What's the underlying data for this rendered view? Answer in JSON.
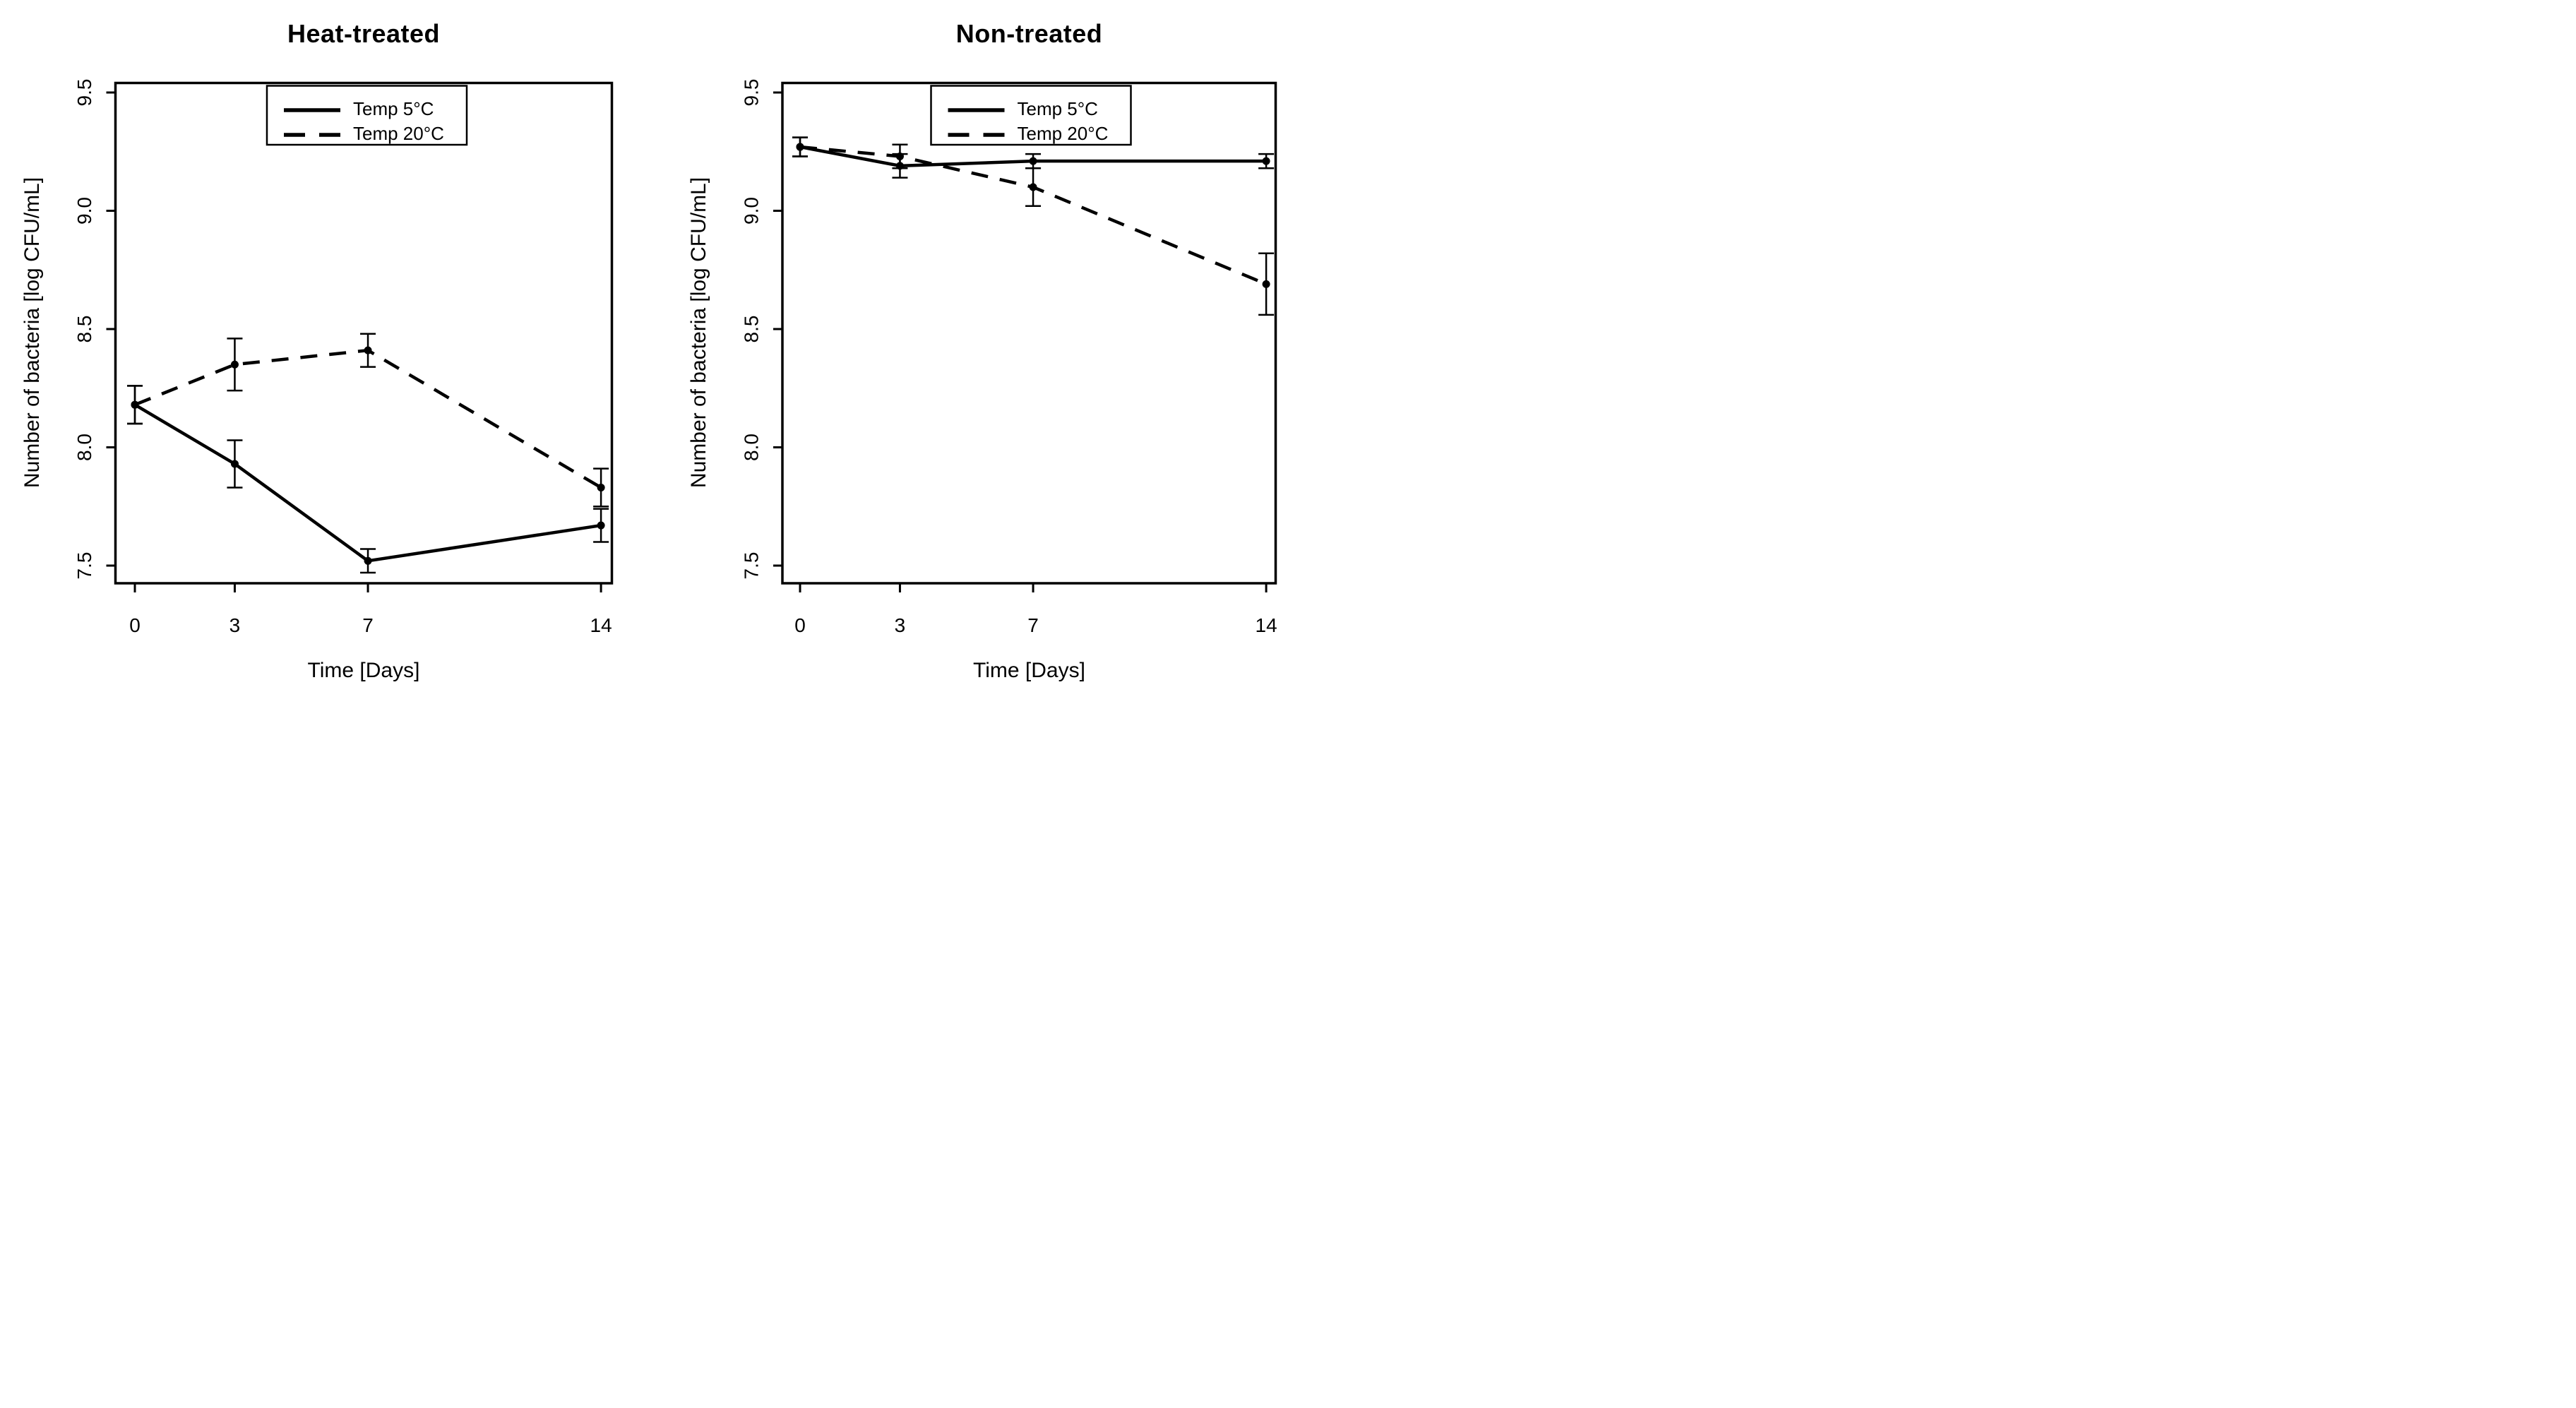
{
  "figure": {
    "background": "#ffffff",
    "foreground": "#000000",
    "panel_count": 2
  },
  "chart_data": [
    {
      "type": "line",
      "title": "Heat-treated",
      "xlabel": "Time [Days]",
      "ylabel": "Number of bacteria [log CFU/mL]",
      "x": [
        0,
        3,
        7,
        14
      ],
      "xtick_labels": [
        "0",
        "3",
        "7",
        "14"
      ],
      "yticks": [
        7.5,
        8.0,
        8.5,
        9.0,
        9.5
      ],
      "ytick_labels": [
        "7.5",
        "8.0",
        "8.5",
        "9.0",
        "9.5"
      ],
      "ylim": [
        7.42,
        9.58
      ],
      "grid": false,
      "legend_position": "top-inside",
      "ytick_label_rotation": -90,
      "series": [
        {
          "name": "Temp 5°C",
          "style": "solid",
          "marker": "filled-circle",
          "values": [
            8.18,
            7.93,
            7.52,
            7.67
          ],
          "errors": [
            0.08,
            0.1,
            0.05,
            0.07
          ]
        },
        {
          "name": "Temp 20°C",
          "style": "dashed",
          "marker": "filled-circle",
          "values": [
            8.18,
            8.35,
            8.41,
            7.83
          ],
          "errors": [
            0.08,
            0.11,
            0.07,
            0.08
          ]
        }
      ]
    },
    {
      "type": "line",
      "title": "Non-treated",
      "xlabel": "Time [Days]",
      "ylabel": "Number of bacteria [log CFU/mL]",
      "x": [
        0,
        3,
        7,
        14
      ],
      "xtick_labels": [
        "0",
        "3",
        "7",
        "14"
      ],
      "yticks": [
        7.5,
        8.0,
        8.5,
        9.0,
        9.5
      ],
      "ytick_labels": [
        "7.5",
        "8.0",
        "8.5",
        "9.0",
        "9.5"
      ],
      "ylim": [
        7.42,
        9.58
      ],
      "grid": false,
      "legend_position": "top-inside",
      "ytick_label_rotation": -90,
      "series": [
        {
          "name": "Temp 5°C",
          "style": "solid",
          "marker": "filled-circle",
          "values": [
            9.27,
            9.19,
            9.21,
            9.21
          ],
          "errors": [
            0.04,
            0.05,
            0.03,
            0.03
          ]
        },
        {
          "name": "Temp 20°C",
          "style": "dashed",
          "marker": "filled-circle",
          "values": [
            9.27,
            9.23,
            9.1,
            8.69
          ],
          "errors": [
            0.04,
            0.05,
            0.08,
            0.13
          ]
        }
      ]
    }
  ]
}
